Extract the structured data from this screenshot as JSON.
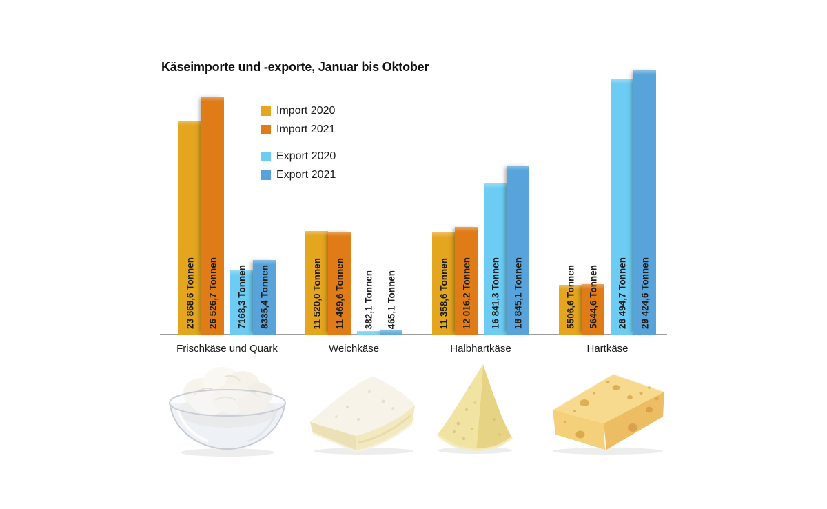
{
  "title": "Käseimporte und -exporte, Januar bis Oktober",
  "legend": {
    "items": [
      {
        "label": "Import 2020",
        "color": "#E4A51F"
      },
      {
        "label": "Import 2021",
        "color": "#E07C18"
      },
      {
        "label": "Export 2020",
        "color": "#6CCCF3"
      },
      {
        "label": "Export 2021",
        "color": "#58A3D9"
      }
    ]
  },
  "chart_data": {
    "type": "bar",
    "title": "Käseimporte und -exporte, Januar bis Oktober",
    "unit": "Tonnen",
    "categories": [
      "Frischkäse und Quark",
      "Weichkäse",
      "Halbhartkäse",
      "Hartkäse"
    ],
    "series": [
      {
        "name": "Import 2020",
        "color": "#E4A51F",
        "values": [
          23868.6,
          11520.0,
          11358.6,
          5506.6
        ],
        "labels": [
          "23 868,6 Tonnen",
          "11 520,0 Tonnen",
          "11 358,6 Tonnen",
          "5506,6 Tonnen"
        ]
      },
      {
        "name": "Import 2021",
        "color": "#E07C18",
        "values": [
          26526.7,
          11469.6,
          12016.2,
          5644.6
        ],
        "labels": [
          "26 526,7 Tonnen",
          "11 469,6 Tonnen",
          "12 016,2 Tonnen",
          "5644,6 Tonnen"
        ]
      },
      {
        "name": "Export 2020",
        "color": "#6CCCF3",
        "values": [
          7168.3,
          382.1,
          16841.3,
          28494.7
        ],
        "labels": [
          "7168,3 Tonnen",
          "382,1 Tonnen",
          "16 841,3 Tonnen",
          "28 494,7 Tonnen"
        ]
      },
      {
        "name": "Export 2021",
        "color": "#58A3D9",
        "values": [
          8335.4,
          465.1,
          18845.1,
          29424.6
        ],
        "labels": [
          "8335,4 Tonnen",
          "465,1 Tonnen",
          "18 845,1 Tonnen",
          "29 424,6 Tonnen"
        ]
      }
    ],
    "ylim": [
      0,
      29424.6
    ],
    "grid": false,
    "axis_color": "#9c9c9c",
    "value_label_color": "#1d1d1b",
    "legend_position": "upper-left-inside",
    "category_images": [
      "quark-bowl",
      "brie-wedge",
      "semi-hard-wedge",
      "emmental-block"
    ]
  }
}
